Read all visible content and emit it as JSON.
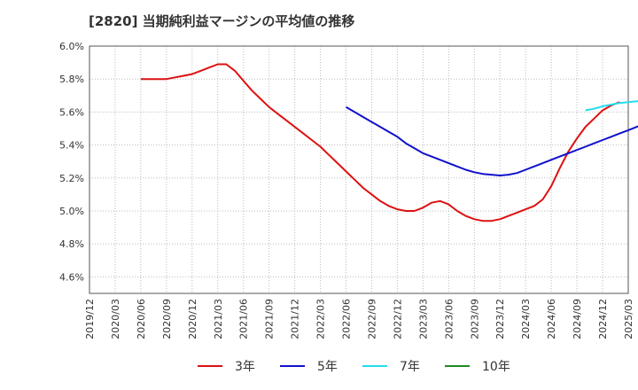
{
  "title": "[2820]  当期純利益マージンの平均値の推移",
  "chart_data": {
    "type": "line",
    "title": "[2820]  当期純利益マージンの平均値の推移",
    "xlabel": "",
    "ylabel": "",
    "x_ticks": [
      "2019/12",
      "2020/03",
      "2020/06",
      "2020/09",
      "2020/12",
      "2021/03",
      "2021/06",
      "2021/09",
      "2021/12",
      "2022/03",
      "2022/06",
      "2022/09",
      "2022/12",
      "2023/03",
      "2023/06",
      "2023/09",
      "2023/12",
      "2024/03",
      "2024/06",
      "2024/09",
      "2024/12",
      "2025/03"
    ],
    "y_ticks": [
      "4.6%",
      "4.8%",
      "5.0%",
      "5.2%",
      "5.4%",
      "5.6%",
      "5.8%",
      "6.0%"
    ],
    "ylim": [
      4.5,
      6.0
    ],
    "grid": true,
    "legend_position": "bottom",
    "series": [
      {
        "name": "3年",
        "color": "#dd1111",
        "points": [
          [
            "2020/06",
            5.8
          ],
          [
            "2020/07",
            5.8
          ],
          [
            "2020/08",
            5.8
          ],
          [
            "2020/09",
            5.8
          ],
          [
            "2020/10",
            5.81
          ],
          [
            "2020/11",
            5.82
          ],
          [
            "2020/12",
            5.83
          ],
          [
            "2021/01",
            5.85
          ],
          [
            "2021/02",
            5.87
          ],
          [
            "2021/03",
            5.89
          ],
          [
            "2021/04",
            5.89
          ],
          [
            "2021/05",
            5.85
          ],
          [
            "2021/06",
            5.79
          ],
          [
            "2021/07",
            5.73
          ],
          [
            "2021/08",
            5.68
          ],
          [
            "2021/09",
            5.63
          ],
          [
            "2021/10",
            5.59
          ],
          [
            "2021/11",
            5.55
          ],
          [
            "2021/12",
            5.51
          ],
          [
            "2022/01",
            5.47
          ],
          [
            "2022/02",
            5.43
          ],
          [
            "2022/03",
            5.39
          ],
          [
            "2022/04",
            5.34
          ],
          [
            "2022/05",
            5.29
          ],
          [
            "2022/06",
            5.24
          ],
          [
            "2022/07",
            5.19
          ],
          [
            "2022/08",
            5.14
          ],
          [
            "2022/09",
            5.1
          ],
          [
            "2022/10",
            5.06
          ],
          [
            "2022/11",
            5.03
          ],
          [
            "2022/12",
            5.01
          ],
          [
            "2023/01",
            5.0
          ],
          [
            "2023/02",
            5.0
          ],
          [
            "2023/03",
            5.02
          ],
          [
            "2023/04",
            5.05
          ],
          [
            "2023/05",
            5.06
          ],
          [
            "2023/06",
            5.04
          ],
          [
            "2023/07",
            5.0
          ],
          [
            "2023/08",
            4.97
          ],
          [
            "2023/09",
            4.95
          ],
          [
            "2023/10",
            4.94
          ],
          [
            "2023/11",
            4.94
          ],
          [
            "2023/12",
            4.95
          ],
          [
            "2024/01",
            4.97
          ],
          [
            "2024/02",
            4.99
          ],
          [
            "2024/03",
            5.01
          ],
          [
            "2024/04",
            5.03
          ],
          [
            "2024/05",
            5.07
          ],
          [
            "2024/06",
            5.15
          ],
          [
            "2024/07",
            5.26
          ],
          [
            "2024/08",
            5.36
          ],
          [
            "2024/09",
            5.44
          ],
          [
            "2024/10",
            5.51
          ],
          [
            "2024/11",
            5.56
          ],
          [
            "2024/12",
            5.61
          ],
          [
            "2025/01",
            5.64
          ],
          [
            "2025/02",
            5.66
          ]
        ]
      },
      {
        "name": "5年",
        "color": "#1111cc",
        "points": [
          [
            "2022/06",
            5.63
          ],
          [
            "2022/07",
            5.6
          ],
          [
            "2022/08",
            5.57
          ],
          [
            "2022/09",
            5.54
          ],
          [
            "2022/10",
            5.51
          ],
          [
            "2022/11",
            5.48
          ],
          [
            "2022/12",
            5.45
          ],
          [
            "2023/01",
            5.41
          ],
          [
            "2023/02",
            5.38
          ],
          [
            "2023/03",
            5.35
          ],
          [
            "2023/04",
            5.33
          ],
          [
            "2023/05",
            5.31
          ],
          [
            "2023/06",
            5.29
          ],
          [
            "2023/07",
            5.27
          ],
          [
            "2023/08",
            5.25
          ],
          [
            "2023/09",
            5.235
          ],
          [
            "2023/10",
            5.225
          ],
          [
            "2023/11",
            5.22
          ],
          [
            "2023/12",
            5.215
          ],
          [
            "2024/01",
            5.22
          ],
          [
            "2024/02",
            5.23
          ],
          [
            "2024/03",
            5.25
          ],
          [
            "2024/04",
            5.27
          ],
          [
            "2024/05",
            5.29
          ],
          [
            "2024/06",
            5.31
          ],
          [
            "2024/07",
            5.33
          ],
          [
            "2024/08",
            5.35
          ],
          [
            "2024/09",
            5.37
          ],
          [
            "2024/10",
            5.39
          ],
          [
            "2024/11",
            5.41
          ],
          [
            "2024/12",
            5.43
          ],
          [
            "2025/01",
            5.45
          ],
          [
            "2025/02",
            5.47
          ],
          [
            "2025/03",
            5.49
          ],
          [
            "2025/04",
            5.51
          ],
          [
            "2025/05",
            5.53
          ]
        ]
      },
      {
        "name": "7年",
        "color": "#22ddee",
        "points": [
          [
            "2024/10",
            5.61
          ],
          [
            "2024/11",
            5.62
          ],
          [
            "2024/12",
            5.635
          ],
          [
            "2025/01",
            5.645
          ],
          [
            "2025/02",
            5.655
          ],
          [
            "2025/03",
            5.66
          ],
          [
            "2025/04",
            5.665
          ],
          [
            "2025/05",
            5.665
          ]
        ]
      },
      {
        "name": "10年",
        "color": "#228822",
        "points": []
      }
    ]
  }
}
